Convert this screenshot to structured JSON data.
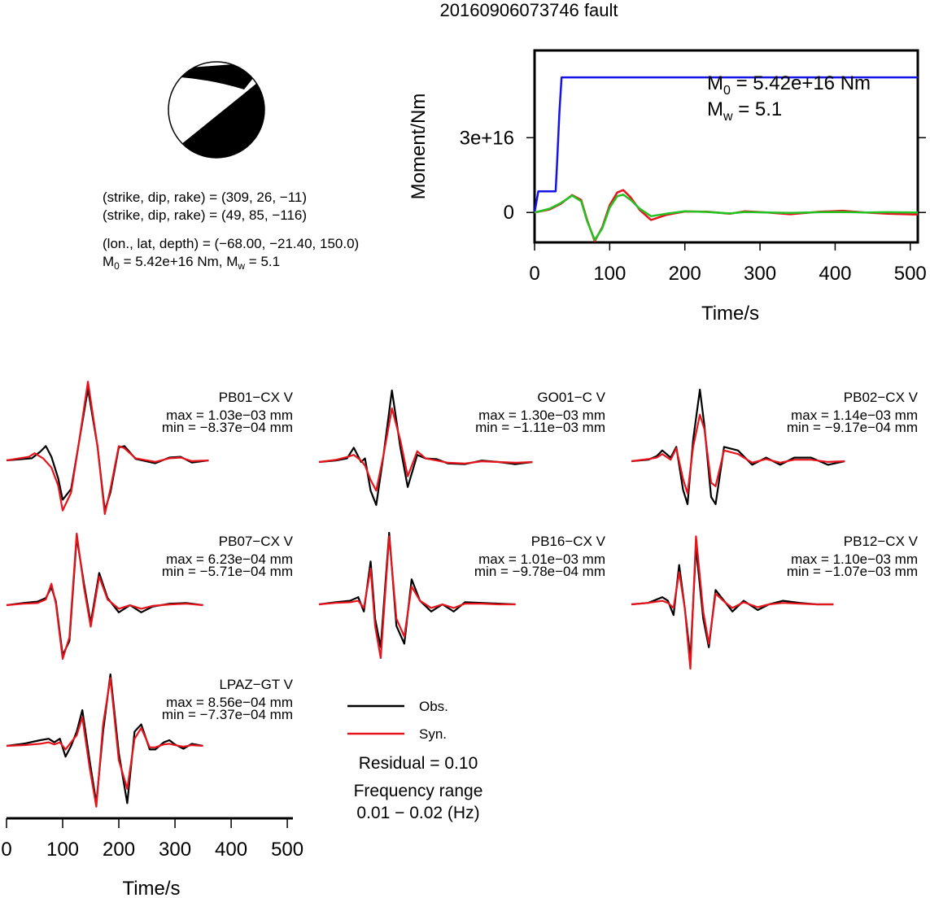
{
  "title": "20160906073746 fault",
  "mechanism": {
    "plane1": "(strike, dip, rake) = (309, 26, −11)",
    "plane2": "(strike, dip, rake) = (49, 85, −116)",
    "location": "(lon., lat, depth) = (−68.00, −21.40, 150.0)",
    "moment": {
      "m0_prefix": "M",
      "m0_sub": "0",
      "m0_value": " = 5.42e+16 Nm, ",
      "mw_prefix": "M",
      "mw_sub": "w",
      "mw_value": " = 5.1"
    }
  },
  "colors": {
    "observed": "#000000",
    "synthetic": "#e8141c",
    "cumulative_moment": "#1414e6",
    "moment_rate_green": "#22c322",
    "beachball_fill": "#000000"
  },
  "chart_data": [
    {
      "type": "line",
      "name": "moment-function",
      "ylabel": "Moment/Nm",
      "xlabel": "Time/s",
      "xlim": [
        0,
        510
      ],
      "ylim": [
        -12000000000000000,
        65000000000000000
      ],
      "xticks": [
        0,
        100,
        200,
        300,
        400,
        500
      ],
      "xtick_labels": [
        "0",
        "100",
        "200",
        "300",
        "400",
        "500"
      ],
      "yticks": [
        0,
        30000000000000000
      ],
      "ytick_labels": [
        "0",
        "3e+16"
      ],
      "annotation": {
        "m0_prefix": "M",
        "m0_sub": "0",
        "m0_text": " = 5.42e+16 Nm",
        "mw_prefix": "M",
        "mw_sub": "w",
        "mw_text": " = 5.1"
      },
      "series": [
        {
          "color": "#1414e6",
          "kind": "cumulative",
          "x": [
            0,
            5,
            10,
            28,
            30,
            33,
            36,
            38,
            510
          ],
          "y": [
            0,
            8500000000000000,
            8500000000000000,
            8500000000000000,
            20000000000000000,
            40000000000000000,
            54200000000000000,
            54200000000000000,
            54200000000000000
          ]
        },
        {
          "color": "#e8141c",
          "kind": "rate",
          "x": [
            0,
            20,
            35,
            50,
            62,
            70,
            80,
            90,
            100,
            110,
            118,
            128,
            140,
            155,
            175,
            200,
            230,
            260,
            280,
            310,
            340,
            380,
            410,
            440,
            470,
            510
          ],
          "y": [
            0,
            1200000000000000,
            3500000000000000,
            7000000000000000,
            5000000000000000,
            -3000000000000000,
            -11500000000000000,
            -6000000000000000,
            3000000000000000,
            8000000000000000,
            9000000000000000,
            6000000000000000,
            1000000000000000,
            -3000000000000000,
            -1000000000000000,
            400000000000000,
            300000000000000,
            -500000000000000,
            500000000000000,
            0,
            -700000000000000,
            300000000000000,
            700000000000000,
            0,
            -500000000000000,
            -800000000000000
          ]
        },
        {
          "color": "#22c322",
          "kind": "rate",
          "x": [
            0,
            20,
            35,
            50,
            62,
            70,
            80,
            90,
            100,
            110,
            118,
            128,
            140,
            155,
            175,
            200,
            230,
            260,
            280,
            310,
            340,
            380,
            410,
            440,
            470,
            510
          ],
          "y": [
            0,
            1500000000000000,
            3800000000000000,
            6800000000000000,
            4500000000000000,
            -3500000000000000,
            -11000000000000000,
            -6500000000000000,
            2000000000000000,
            6500000000000000,
            7200000000000000,
            5000000000000000,
            1500000000000000,
            -1500000000000000,
            -500000000000000,
            500000000000000,
            200000000000000,
            -400000000000000,
            200000000000000,
            0,
            -200000000000000,
            100000000000000,
            200000000000000,
            0,
            100000000000000,
            0
          ]
        }
      ]
    },
    {
      "type": "line",
      "name": "waveform-fits",
      "xlabel": "Time/s",
      "xlim": [
        0,
        510
      ],
      "xticks": [
        0,
        100,
        200,
        300,
        400,
        500
      ],
      "xtick_labels": [
        "0",
        "100",
        "200",
        "300",
        "400",
        "500"
      ],
      "legend": [
        {
          "label": "Obs.",
          "color": "#000000"
        },
        {
          "label": "Syn.",
          "color": "#e8141c"
        }
      ],
      "residual": "Residual = 0.10",
      "freq_label": "Frequency range",
      "freq_value": "0.01 − 0.02 (Hz)",
      "stations": [
        {
          "name": "PB01−CX V",
          "max": "max = 1.03e−03 mm",
          "min": "min = −8.37e−04 mm",
          "vmax": 1.03,
          "vmin": -0.837,
          "obs": {
            "x": [
              0,
              45,
              60,
              70,
              80,
              92,
              100,
              115,
              128,
              145,
              162,
              175,
              185,
              200,
              210,
              230,
              265,
              290,
              310,
              330,
              360
            ],
            "y": [
              0,
              0.03,
              0.12,
              0.2,
              0.05,
              -0.25,
              -0.55,
              -0.4,
              0.2,
              1.0,
              0.2,
              -0.7,
              -0.45,
              0.18,
              0.2,
              0.02,
              -0.04,
              0.04,
              0.05,
              -0.03,
              0
            ]
          },
          "syn": {
            "x": [
              0,
              40,
              50,
              65,
              80,
              92,
              100,
              115,
              130,
              145,
              162,
              175,
              185,
              200,
              210,
              230,
              265,
              290,
              310,
              330,
              360
            ],
            "y": [
              0,
              0.05,
              0.1,
              0.03,
              -0.1,
              -0.35,
              -0.7,
              -0.45,
              0.3,
              1.1,
              0.2,
              -0.75,
              -0.4,
              0.2,
              0.17,
              0.03,
              -0.02,
              0.03,
              0.04,
              -0.01,
              0
            ]
          }
        },
        {
          "name": "GO01−C V",
          "max": "max = 1.30e−03 mm",
          "min": "min = −1.11e−03 mm",
          "vmax": 1.3,
          "vmin": -1.11,
          "obs": {
            "x": [
              0,
              30,
              50,
              62,
              75,
              82,
              92,
              102,
              115,
              130,
              145,
              158,
              175,
              190,
              210,
              230,
              260,
              290,
              320,
              350,
              380
            ],
            "y": [
              0,
              0.02,
              0.05,
              0.2,
              0.0,
              0.05,
              -0.4,
              -0.6,
              0.1,
              1.0,
              0.2,
              -0.35,
              0.1,
              0.05,
              0.04,
              -0.02,
              -0.03,
              0.02,
              0.0,
              -0.03,
              0
            ]
          },
          "syn": {
            "x": [
              0,
              30,
              50,
              62,
              75,
              82,
              92,
              102,
              115,
              130,
              145,
              158,
              175,
              190,
              210,
              230,
              260,
              290,
              320,
              350,
              380
            ],
            "y": [
              0,
              0.03,
              0.07,
              0.1,
              0.02,
              -0.05,
              -0.25,
              -0.4,
              0.1,
              0.75,
              0.3,
              -0.2,
              0.15,
              0.05,
              0.02,
              -0.01,
              -0.02,
              0.01,
              0.0,
              -0.01,
              0
            ]
          }
        },
        {
          "name": "PB02−CX V",
          "max": "max = 1.14e−03 mm",
          "min": "min = −9.17e−04 mm",
          "vmax": 1.14,
          "vmin": -0.917,
          "obs": {
            "x": [
              0,
              30,
              45,
              55,
              70,
              80,
              92,
              100,
              110,
              122,
              130,
              142,
              150,
              165,
              190,
              215,
              240,
              265,
              290,
              320,
              350,
              380
            ],
            "y": [
              0,
              0.02,
              0.07,
              0.15,
              0.05,
              0.2,
              -0.4,
              -0.6,
              0.3,
              1.0,
              0.5,
              -0.5,
              -0.6,
              0.2,
              0.15,
              -0.05,
              0.05,
              -0.05,
              0.05,
              0.05,
              -0.05,
              0
            ]
          },
          "syn": {
            "x": [
              0,
              30,
              45,
              55,
              70,
              80,
              92,
              100,
              110,
              122,
              130,
              142,
              150,
              165,
              190,
              215,
              240,
              265,
              290,
              320,
              350,
              380
            ],
            "y": [
              0,
              0.03,
              0.05,
              0.1,
              0.02,
              0.18,
              -0.25,
              -0.45,
              0.2,
              0.65,
              0.45,
              -0.3,
              -0.35,
              0.15,
              0.1,
              -0.02,
              0.03,
              -0.02,
              0.02,
              0.02,
              -0.01,
              0
            ]
          }
        },
        {
          "name": "PB07−CX V",
          "max": "max = 6.23e−04 mm",
          "min": "min = −5.71e−04 mm",
          "vmax": 0.623,
          "vmin": -0.571,
          "obs": {
            "x": [
              0,
              30,
              55,
              70,
              80,
              88,
              100,
              112,
              125,
              138,
              150,
              165,
              180,
              200,
              220,
              240,
              260,
              290,
              320,
              350
            ],
            "y": [
              0,
              0.03,
              0.05,
              0.1,
              0.25,
              0.05,
              -0.7,
              -0.5,
              0.95,
              0.3,
              -0.25,
              0.45,
              0.1,
              -0.1,
              0.0,
              -0.1,
              -0.02,
              0.02,
              0.03,
              0
            ]
          },
          "syn": {
            "x": [
              0,
              30,
              55,
              70,
              80,
              88,
              100,
              112,
              125,
              138,
              150,
              165,
              180,
              200,
              220,
              240,
              260,
              290,
              320,
              350
            ],
            "y": [
              0,
              0.02,
              0.03,
              0.08,
              0.3,
              0.02,
              -0.75,
              -0.45,
              1.0,
              0.25,
              -0.3,
              0.4,
              0.08,
              -0.05,
              0.0,
              -0.05,
              -0.01,
              0.01,
              0.02,
              0
            ]
          }
        },
        {
          "name": "PB16−CX V",
          "max": "max = 1.01e−03 mm",
          "min": "min = −9.78e−04 mm",
          "vmax": 1.01,
          "vmin": -0.978,
          "obs": {
            "x": [
              0,
              30,
              55,
              70,
              80,
              92,
              100,
              110,
              125,
              138,
              152,
              165,
              180,
              200,
              220,
              240,
              260,
              290,
              320,
              350
            ],
            "y": [
              0,
              0.03,
              0.05,
              0.1,
              -0.1,
              0.6,
              -0.2,
              -0.6,
              1.0,
              -0.3,
              -0.55,
              0.35,
              0.05,
              -0.1,
              0.0,
              -0.1,
              0.03,
              0.02,
              0.01,
              0
            ]
          },
          "syn": {
            "x": [
              0,
              30,
              55,
              70,
              80,
              92,
              100,
              110,
              125,
              138,
              152,
              165,
              180,
              200,
              220,
              240,
              260,
              290,
              320,
              350
            ],
            "y": [
              0,
              0.02,
              0.03,
              0.05,
              -0.05,
              0.5,
              -0.3,
              -0.75,
              0.95,
              -0.2,
              -0.45,
              0.25,
              0.05,
              -0.05,
              0.0,
              -0.05,
              0.01,
              0.01,
              0.0,
              0
            ]
          }
        },
        {
          "name": "PB12−CX V",
          "max": "max = 1.10e−03 mm",
          "min": "min = −1.07e−03 mm",
          "vmax": 1.1,
          "vmin": -1.07,
          "obs": {
            "x": [
              0,
              30,
              55,
              65,
              75,
              85,
              95,
              105,
              115,
              128,
              138,
              150,
              165,
              180,
              200,
              225,
              245,
              270,
              300,
              330,
              360
            ],
            "y": [
              0,
              0.02,
              0.1,
              0.05,
              -0.15,
              0.55,
              -0.05,
              -0.75,
              0.8,
              -0.2,
              -0.6,
              0.2,
              0.05,
              -0.1,
              0.05,
              -0.08,
              0.0,
              0.05,
              0.02,
              0.0,
              0
            ]
          },
          "syn": {
            "x": [
              0,
              30,
              55,
              65,
              75,
              85,
              95,
              105,
              115,
              128,
              138,
              150,
              165,
              180,
              200,
              225,
              245,
              270,
              300,
              330,
              360
            ],
            "y": [
              0,
              0.02,
              0.05,
              0.02,
              -0.05,
              0.45,
              -0.05,
              -0.9,
              0.95,
              -0.1,
              -0.55,
              0.15,
              0.04,
              -0.05,
              0.03,
              -0.04,
              0.0,
              0.02,
              0.01,
              0.0,
              0
            ]
          }
        },
        {
          "name": "LPAZ−GT V",
          "max": "max = 8.56e−04 mm",
          "min": "min = −7.37e−04 mm",
          "vmax": 0.856,
          "vmin": -0.737,
          "obs": {
            "x": [
              0,
              30,
              60,
              75,
              85,
              95,
              105,
              115,
              125,
              135,
              148,
              160,
              172,
              185,
              200,
              215,
              228,
              240,
              255,
              265,
              280,
              290,
              300,
              315,
              330,
              350
            ],
            "y": [
              0,
              0.03,
              0.08,
              0.1,
              0.05,
              0.1,
              -0.15,
              0.0,
              0.2,
              0.5,
              -0.2,
              -0.8,
              0.2,
              1.0,
              -0.1,
              -0.8,
              0.2,
              0.3,
              -0.05,
              -0.05,
              0.05,
              0.08,
              0.02,
              -0.04,
              0.03,
              0
            ]
          },
          "syn": {
            "x": [
              0,
              30,
              60,
              75,
              85,
              95,
              105,
              115,
              125,
              135,
              148,
              160,
              172,
              185,
              200,
              215,
              228,
              240,
              255,
              265,
              280,
              290,
              300,
              315,
              330,
              350
            ],
            "y": [
              0,
              0.01,
              0.03,
              0.05,
              0.02,
              0.05,
              -0.05,
              0.05,
              0.15,
              0.4,
              -0.3,
              -0.85,
              0.3,
              0.95,
              -0.2,
              -0.6,
              0.1,
              0.25,
              -0.02,
              -0.02,
              0.02,
              0.03,
              0.01,
              -0.01,
              0.01,
              0
            ]
          }
        }
      ]
    }
  ]
}
